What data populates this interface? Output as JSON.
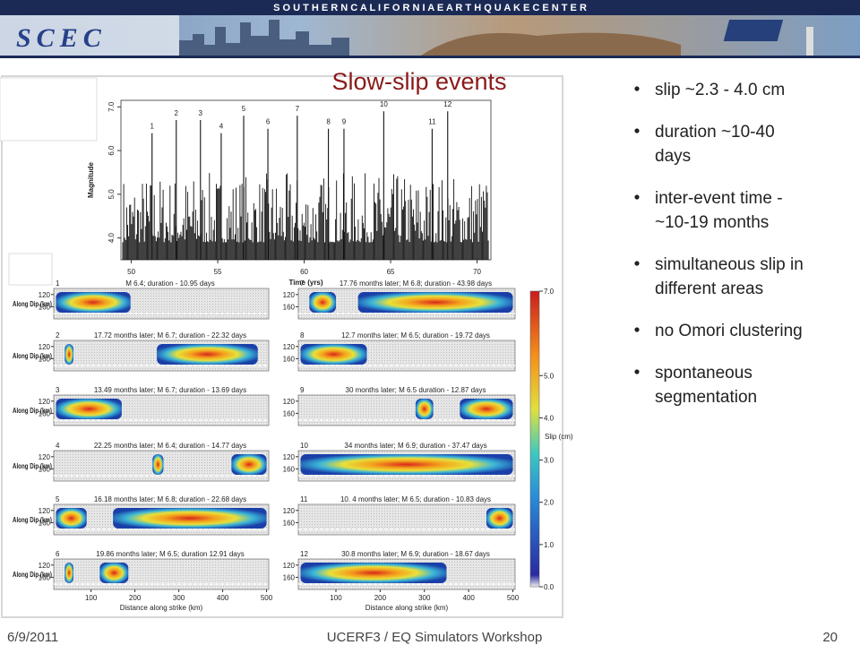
{
  "banner": {
    "organization": "S O U T H E R N   C A L I F O R N I A   E A R T H Q U A K E   C E N T E R",
    "logo": "SCEC"
  },
  "title": "Slow-slip events",
  "bullets": [
    [
      "slip ~2.3 - 4.0 cm"
    ],
    [
      "duration ~10-40",
      "days"
    ],
    [
      "inter-event time -",
      "~10-19 months"
    ],
    [
      "simultaneous slip in",
      "different areas"
    ],
    [
      "no Omori clustering"
    ],
    [
      "spontaneous",
      "segmentation"
    ]
  ],
  "footer": {
    "date": "6/9/2011",
    "event": "UCERF3 / EQ Simulators Workshop",
    "page": "20"
  },
  "figure": {
    "magnitude_plot": {
      "type": "spike",
      "x_label": "Time (yrs)",
      "y_label": "Magnitude",
      "xlim": [
        49.4,
        70.8
      ],
      "ylim": [
        3.5,
        7.15
      ],
      "xticks": [
        50,
        55,
        60,
        65,
        70
      ],
      "yticks": [
        {
          "value": 4,
          "label": "4.0"
        },
        {
          "value": 5,
          "label": "5.0"
        },
        {
          "value": 6,
          "label": "6.0"
        },
        {
          "value": 7,
          "label": "7.0"
        }
      ],
      "events": {
        "labels": [
          "1",
          "2",
          "3",
          "4",
          "5",
          "6",
          "7",
          "8",
          "9",
          "10",
          "11",
          "12"
        ],
        "x": [
          51.2,
          52.6,
          54.0,
          55.2,
          56.5,
          57.9,
          59.6,
          61.4,
          62.3,
          64.6,
          67.4,
          68.3
        ],
        "magnitudes": [
          6.4,
          6.7,
          6.7,
          6.4,
          6.8,
          6.5,
          6.8,
          6.5,
          6.5,
          6.9,
          6.5,
          6.9
        ]
      }
    },
    "slip_panels": {
      "y_label": "Along Dip (km)",
      "x_label": "Distance along strike (km)",
      "xlim": [
        15,
        505
      ],
      "ylim": [
        100,
        200
      ],
      "xticks": [
        100,
        200,
        300,
        400,
        500
      ],
      "yticks": [
        120,
        160
      ],
      "panels": [
        {
          "number": "1",
          "caption": "M 6.4; duration - 10.95 days"
        },
        {
          "number": "2",
          "caption": "17.72 months later; M 6.7; duration - 22.32 days"
        },
        {
          "number": "3",
          "caption": "13.49 months later; M 6.7; duration - 13.69 days"
        },
        {
          "number": "4",
          "caption": "22.25 months later; M 6.4; duration - 14.77 days"
        },
        {
          "number": "5",
          "caption": "16.18 months later; M 6.8; duration - 22.68 days"
        },
        {
          "number": "6",
          "caption": "19.86 months later; M 6.5; duration 12.91 days"
        },
        {
          "number": "7",
          "caption": "17.76 months later; M 6.8; duration - 43.98 days"
        },
        {
          "number": "8",
          "caption": "12.7 months later; M 6.5; duration - 19.72 days"
        },
        {
          "number": "9",
          "caption": "30 months later; M 6.5 duration - 12.87 days"
        },
        {
          "number": "10",
          "caption": "34 months later; M 6.9; duration - 37.47 days"
        },
        {
          "number": "11",
          "caption": "10. 4 months later; M 6.5; duration - 10.83 days"
        },
        {
          "number": "12",
          "caption": "30.8 months later; M 6.9; duration - 18.67 days"
        }
      ]
    },
    "colorbar": {
      "label": "Slip (cm)",
      "lim": [
        0,
        7
      ],
      "ticks": [
        {
          "value": 0,
          "label": "0.0"
        },
        {
          "value": 1,
          "label": "1.0"
        },
        {
          "value": 2,
          "label": "2.0"
        },
        {
          "value": 3,
          "label": "3.0"
        },
        {
          "value": 4,
          "label": "4.0"
        },
        {
          "value": 5,
          "label": "5.0"
        },
        {
          "value": 7,
          "label": "7.0"
        }
      ]
    }
  }
}
